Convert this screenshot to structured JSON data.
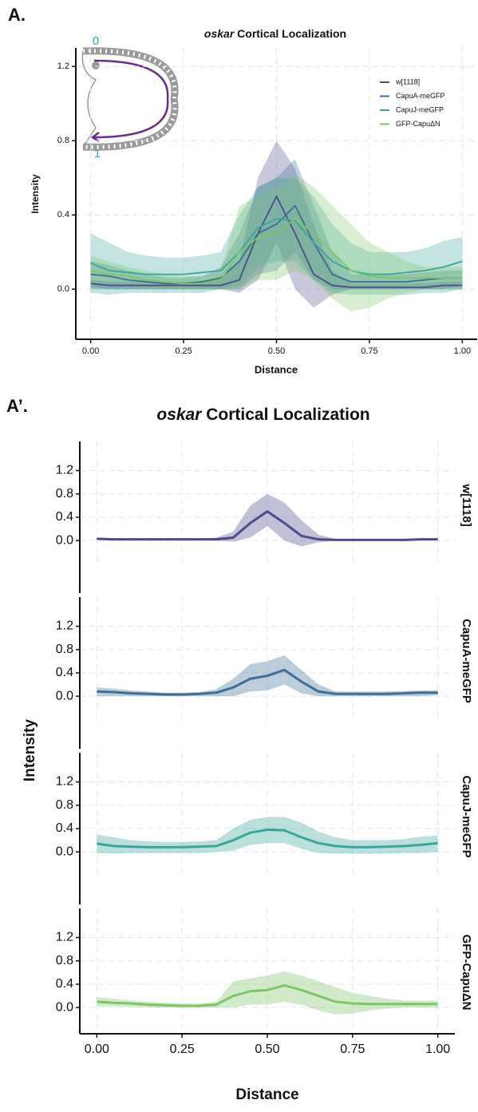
{
  "panel_labels": [
    "A.",
    "A’."
  ],
  "inset_labels": [
    "0",
    "1"
  ],
  "chart_data": [
    {
      "type": "line",
      "title": "oskar Cortical Localization",
      "x_label": "Distance",
      "y_label": "Intensity",
      "x": [
        0,
        0.05,
        0.1,
        0.15,
        0.2,
        0.25,
        0.3,
        0.35,
        0.4,
        0.45,
        0.5,
        0.55,
        0.6,
        0.65,
        0.7,
        0.75,
        0.8,
        0.85,
        0.9,
        0.95,
        1
      ],
      "xlim": [
        -0.04,
        1.04
      ],
      "ylim": [
        -0.27,
        1.3
      ],
      "xticks": [
        {
          "value": 0,
          "label": "0.00"
        },
        {
          "value": 0.25,
          "label": "0.25"
        },
        {
          "value": 0.5,
          "label": "0.50"
        },
        {
          "value": 0.75,
          "label": "0.75"
        },
        {
          "value": 1,
          "label": "1.00"
        }
      ],
      "yticks": [
        {
          "value": 0,
          "label": "0.0"
        },
        {
          "value": 0.4,
          "label": "0.4"
        },
        {
          "value": 0.8,
          "label": "0.8"
        },
        {
          "value": 1.2,
          "label": "1.2"
        }
      ],
      "grid": true,
      "legend": "top-right",
      "series": [
        {
          "name": "w[1118]",
          "color": "#4e4a8c",
          "values": [
            0.03,
            0.02,
            0.02,
            0.02,
            0.02,
            0.02,
            0.02,
            0.02,
            0.05,
            0.3,
            0.5,
            0.3,
            0.08,
            0.02,
            0.01,
            0.01,
            0.01,
            0.01,
            0.01,
            0.02,
            0.02
          ],
          "upper": [
            0.05,
            0.04,
            0.04,
            0.04,
            0.04,
            0.04,
            0.04,
            0.05,
            0.15,
            0.6,
            0.8,
            0.65,
            0.35,
            0.1,
            0.03,
            0.03,
            0.03,
            0.03,
            0.03,
            0.04,
            0.04
          ],
          "lower": [
            0.01,
            0,
            0,
            0,
            0,
            0,
            0,
            0,
            -0.02,
            0.05,
            0.25,
            0,
            -0.1,
            -0.03,
            0,
            0,
            0,
            0,
            0,
            0,
            0
          ]
        },
        {
          "name": "CapuA-meGFP",
          "color": "#3d6f95",
          "values": [
            0.08,
            0.07,
            0.05,
            0.04,
            0.03,
            0.03,
            0.04,
            0.06,
            0.15,
            0.3,
            0.35,
            0.45,
            0.25,
            0.08,
            0.04,
            0.04,
            0.04,
            0.04,
            0.05,
            0.06,
            0.06
          ],
          "upper": [
            0.15,
            0.13,
            0.1,
            0.08,
            0.06,
            0.06,
            0.07,
            0.12,
            0.3,
            0.55,
            0.6,
            0.7,
            0.45,
            0.2,
            0.08,
            0.08,
            0.08,
            0.08,
            0.09,
            0.1,
            0.1
          ],
          "lower": [
            0,
            0,
            0,
            0,
            0,
            0,
            0,
            0,
            0,
            0.08,
            0.1,
            0.2,
            0.05,
            0,
            0,
            0,
            0,
            0,
            0,
            0,
            0.02
          ]
        },
        {
          "name": "CapuJ-meGFP",
          "color": "#3aa59a",
          "values": [
            0.14,
            0.1,
            0.09,
            0.08,
            0.08,
            0.08,
            0.09,
            0.1,
            0.2,
            0.33,
            0.38,
            0.37,
            0.25,
            0.15,
            0.1,
            0.08,
            0.08,
            0.09,
            0.1,
            0.12,
            0.15
          ],
          "upper": [
            0.3,
            0.25,
            0.2,
            0.18,
            0.17,
            0.17,
            0.18,
            0.2,
            0.4,
            0.55,
            0.6,
            0.6,
            0.5,
            0.35,
            0.25,
            0.2,
            0.2,
            0.2,
            0.22,
            0.26,
            0.28
          ],
          "lower": [
            -0.02,
            -0.03,
            -0.02,
            -0.02,
            -0.02,
            -0.02,
            -0.02,
            0,
            0.02,
            0.12,
            0.15,
            0.15,
            0.05,
            -0.02,
            -0.03,
            -0.03,
            -0.03,
            -0.03,
            -0.02,
            -0.02,
            0
          ]
        },
        {
          "name": "GFP-CapuΔN",
          "color": "#7cc667",
          "values": [
            0.1,
            0.08,
            0.07,
            0.05,
            0.04,
            0.03,
            0.03,
            0.05,
            0.2,
            0.28,
            0.3,
            0.38,
            0.3,
            0.2,
            0.1,
            0.07,
            0.06,
            0.06,
            0.06,
            0.06,
            0.06
          ],
          "upper": [
            0.18,
            0.15,
            0.12,
            0.1,
            0.08,
            0.07,
            0.07,
            0.1,
            0.45,
            0.5,
            0.55,
            0.62,
            0.55,
            0.45,
            0.35,
            0.25,
            0.2,
            0.15,
            0.12,
            0.12,
            0.12
          ],
          "lower": [
            0.02,
            0.02,
            0.01,
            0,
            0,
            0,
            0,
            0,
            0,
            0.05,
            0.05,
            0.1,
            0.05,
            -0.05,
            -0.12,
            -0.1,
            -0.05,
            -0.02,
            0,
            0,
            0
          ]
        }
      ]
    },
    {
      "type": "line",
      "facets": true,
      "title": "oskar Cortical Localization",
      "x_label": "Distance",
      "y_label": "Intensity",
      "x": [
        0,
        0.05,
        0.1,
        0.15,
        0.2,
        0.25,
        0.3,
        0.35,
        0.4,
        0.45,
        0.5,
        0.55,
        0.6,
        0.65,
        0.7,
        0.75,
        0.8,
        0.85,
        0.9,
        0.95,
        1
      ],
      "xlim": [
        -0.05,
        1.05
      ],
      "ylim": [
        -0.45,
        1.7
      ],
      "xticks": [
        {
          "value": 0,
          "label": "0.00"
        },
        {
          "value": 0.25,
          "label": "0.25"
        },
        {
          "value": 0.5,
          "label": "0.50"
        },
        {
          "value": 0.75,
          "label": "0.75"
        },
        {
          "value": 1,
          "label": "1.00"
        }
      ],
      "yticks": [
        {
          "value": 0,
          "label": "0.0"
        },
        {
          "value": 0.4,
          "label": "0.4"
        },
        {
          "value": 0.8,
          "label": "0.8"
        },
        {
          "value": 1.2,
          "label": "1.2"
        }
      ],
      "grid": true,
      "series": [
        {
          "name": "w[1118]",
          "color": "#4e4a8c",
          "values": [
            0.03,
            0.02,
            0.02,
            0.02,
            0.02,
            0.02,
            0.02,
            0.02,
            0.05,
            0.3,
            0.5,
            0.3,
            0.08,
            0.02,
            0.01,
            0.01,
            0.01,
            0.01,
            0.01,
            0.02,
            0.02
          ],
          "upper": [
            0.05,
            0.04,
            0.04,
            0.04,
            0.04,
            0.04,
            0.04,
            0.05,
            0.15,
            0.6,
            0.8,
            0.65,
            0.35,
            0.1,
            0.03,
            0.03,
            0.03,
            0.03,
            0.03,
            0.04,
            0.04
          ],
          "lower": [
            0.01,
            0,
            0,
            0,
            0,
            0,
            0,
            0,
            -0.02,
            0.05,
            0.25,
            0,
            -0.1,
            -0.03,
            0,
            0,
            0,
            0,
            0,
            0,
            0
          ]
        },
        {
          "name": "CapuA-meGFP",
          "color": "#3d6f95",
          "values": [
            0.08,
            0.07,
            0.05,
            0.04,
            0.03,
            0.03,
            0.04,
            0.06,
            0.15,
            0.3,
            0.35,
            0.45,
            0.25,
            0.08,
            0.04,
            0.04,
            0.04,
            0.04,
            0.05,
            0.06,
            0.06
          ],
          "upper": [
            0.15,
            0.13,
            0.1,
            0.08,
            0.06,
            0.06,
            0.07,
            0.12,
            0.3,
            0.55,
            0.6,
            0.7,
            0.45,
            0.2,
            0.08,
            0.08,
            0.08,
            0.08,
            0.09,
            0.1,
            0.1
          ],
          "lower": [
            0,
            0,
            0,
            0,
            0,
            0,
            0,
            0,
            0,
            0.08,
            0.1,
            0.2,
            0.05,
            0,
            0,
            0,
            0,
            0,
            0,
            0,
            0.02
          ]
        },
        {
          "name": "CapuJ-meGFP",
          "color": "#3aa59a",
          "values": [
            0.14,
            0.1,
            0.09,
            0.08,
            0.08,
            0.08,
            0.09,
            0.1,
            0.2,
            0.33,
            0.38,
            0.37,
            0.25,
            0.15,
            0.1,
            0.08,
            0.08,
            0.09,
            0.1,
            0.12,
            0.15
          ],
          "upper": [
            0.3,
            0.25,
            0.2,
            0.18,
            0.17,
            0.17,
            0.18,
            0.2,
            0.4,
            0.55,
            0.6,
            0.6,
            0.5,
            0.35,
            0.25,
            0.2,
            0.2,
            0.2,
            0.22,
            0.26,
            0.28
          ],
          "lower": [
            -0.02,
            -0.03,
            -0.02,
            -0.02,
            -0.02,
            -0.02,
            -0.02,
            0,
            0.02,
            0.12,
            0.15,
            0.15,
            0.05,
            -0.02,
            -0.03,
            -0.03,
            -0.03,
            -0.03,
            -0.02,
            -0.02,
            0
          ]
        },
        {
          "name": "GFP-CapuΔN",
          "color": "#7cc667",
          "values": [
            0.1,
            0.08,
            0.07,
            0.05,
            0.04,
            0.03,
            0.03,
            0.05,
            0.2,
            0.28,
            0.3,
            0.38,
            0.3,
            0.2,
            0.1,
            0.07,
            0.06,
            0.06,
            0.06,
            0.06,
            0.06
          ],
          "upper": [
            0.18,
            0.15,
            0.12,
            0.1,
            0.08,
            0.07,
            0.07,
            0.1,
            0.45,
            0.5,
            0.55,
            0.62,
            0.55,
            0.45,
            0.35,
            0.25,
            0.2,
            0.15,
            0.12,
            0.12,
            0.12
          ],
          "lower": [
            0.02,
            0.02,
            0.01,
            0,
            0,
            0,
            0,
            0,
            0,
            0.05,
            0.05,
            0.1,
            0.05,
            -0.05,
            -0.12,
            -0.1,
            -0.05,
            -0.02,
            0,
            0,
            0
          ]
        }
      ]
    }
  ]
}
